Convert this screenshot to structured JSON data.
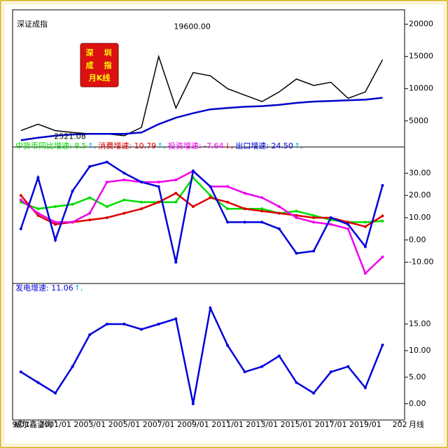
{
  "chart_data": [
    {
      "type": "line",
      "title": "深证成指",
      "logo": [
        "深",
        "圳",
        "成",
        "指",
        "月K线"
      ],
      "annotations": [
        {
          "text": "19600.00",
          "x": 2007.8,
          "y": 19600
        },
        {
          "text": "2521.08",
          "x": 2005.4,
          "y": 2521.08
        }
      ],
      "x": [
        1999,
        2000,
        2001,
        2002,
        2003,
        2004,
        2005,
        2006,
        2007,
        2008,
        2009,
        2010,
        2011,
        2012,
        2013,
        2014,
        2015,
        2016,
        2017,
        2018,
        2019,
        2020
      ],
      "xlim": [
        1998.6,
        2021.2
      ],
      "ylim": [
        1500,
        20500
      ],
      "yticks": [
        5000,
        10000,
        15000,
        20000
      ],
      "series": [
        {
          "name": "深证成指",
          "color": "#000000",
          "values": [
            3500,
            4500,
            3500,
            3200,
            3000,
            3000,
            2700,
            4000,
            15000,
            7000,
            12500,
            12000,
            10000,
            9000,
            8000,
            9500,
            11500,
            10500,
            11000,
            8500,
            9500,
            14500
          ]
        },
        {
          "name": "均线",
          "color": "#0000cc",
          "values": [
            2000,
            2400,
            2700,
            2900,
            3000,
            3000,
            3000,
            3200,
            4500,
            5500,
            6200,
            6800,
            7000,
            7200,
            7300,
            7500,
            7800,
            8000,
            8100,
            8200,
            8300,
            8600
          ]
        }
      ]
    },
    {
      "type": "line",
      "x": [
        1999,
        2000,
        2001,
        2002,
        2003,
        2004,
        2005,
        2006,
        2007,
        2008,
        2009,
        2010,
        2011,
        2012,
        2013,
        2014,
        2015,
        2016,
        2017,
        2018,
        2019,
        2020
      ],
      "xlim": [
        1998.6,
        2021.2
      ],
      "ylim": [
        -18,
        38
      ],
      "yticks": [
        {
          "value": -10,
          "label": "-10.00"
        },
        {
          "value": 0,
          "label": "0.00"
        },
        {
          "value": 10,
          "label": "10.00"
        },
        {
          "value": 20,
          "label": "20.00"
        },
        {
          "value": 30,
          "label": "30.00"
        }
      ],
      "series": [
        {
          "name": "中货币同比增速",
          "legend": "中货币同比增速: 8.5",
          "trend": "↑,",
          "color": "#00dd00",
          "values": [
            17,
            14,
            15,
            16,
            19,
            15,
            18,
            17,
            17,
            17,
            28,
            20,
            14,
            14,
            14,
            12,
            13,
            11,
            9,
            8,
            8,
            8.5
          ]
        },
        {
          "name": "消费增速",
          "legend": "消费增速: 10.79",
          "trend": "↑,",
          "color": "#dd0000",
          "values": [
            20,
            11,
            7,
            8,
            9,
            10,
            12,
            14,
            17,
            21,
            15,
            19,
            17,
            14,
            13,
            12,
            11,
            10,
            10,
            8,
            6,
            10.79
          ]
        },
        {
          "name": "投资增速",
          "legend": "投资增速: -7.64",
          "trend": "↓,",
          "color": "#ee00ee",
          "values": [
            18,
            12,
            8,
            8,
            12,
            26,
            27,
            26,
            26,
            27,
            31,
            24,
            24,
            21,
            19,
            15,
            10,
            8,
            7,
            5,
            -15,
            -7.64
          ]
        },
        {
          "name": "出口增速",
          "legend": "出口增速: 24.50",
          "trend": "↑,",
          "color": "#0000dd",
          "values": [
            5,
            28,
            0,
            22,
            33,
            35,
            30,
            26,
            24,
            -10,
            31,
            24,
            8,
            8,
            8,
            5,
            -6,
            -5,
            10,
            7,
            -3,
            24.5
          ]
        }
      ]
    },
    {
      "type": "line",
      "watermark": "威尔鑫咨询",
      "period": "月线",
      "x": [
        1999,
        2000,
        2001,
        2002,
        2003,
        2004,
        2005,
        2006,
        2007,
        2008,
        2009,
        2010,
        2011,
        2012,
        2013,
        2014,
        2015,
        2016,
        2017,
        2018,
        2019,
        2020
      ],
      "xlim": [
        1998.6,
        2021.2
      ],
      "ylim": [
        -2,
        20
      ],
      "yticks": [
        {
          "value": 0,
          "label": "0.00"
        },
        {
          "value": 5,
          "label": "5.00"
        },
        {
          "value": 10,
          "label": "10.00"
        },
        {
          "value": 15,
          "label": "15.00"
        }
      ],
      "xticks": [
        {
          "value": 1999,
          "label": "9/01"
        },
        {
          "value": 2001,
          "label": "2001/01"
        },
        {
          "value": 2003,
          "label": "2003/01"
        },
        {
          "value": 2005,
          "label": "2005/01"
        },
        {
          "value": 2007,
          "label": "2007/01"
        },
        {
          "value": 2009,
          "label": "2009/01"
        },
        {
          "value": 2011,
          "label": "2011/01"
        },
        {
          "value": 2013,
          "label": "2013/01"
        },
        {
          "value": 2015,
          "label": "2015/01"
        },
        {
          "value": 2017,
          "label": "2017/01"
        },
        {
          "value": 2019,
          "label": "2019/01"
        },
        {
          "value": 2021,
          "label": "202"
        }
      ],
      "series": [
        {
          "name": "发电增速",
          "legend": "发电增速: 11.06",
          "trend": "↑,",
          "color": "#0000dd",
          "values": [
            6,
            4,
            2,
            7,
            13,
            15,
            15,
            14,
            15,
            16,
            0,
            18,
            11,
            6,
            7,
            9,
            4,
            2,
            6,
            7,
            3,
            11.06
          ]
        }
      ]
    }
  ]
}
